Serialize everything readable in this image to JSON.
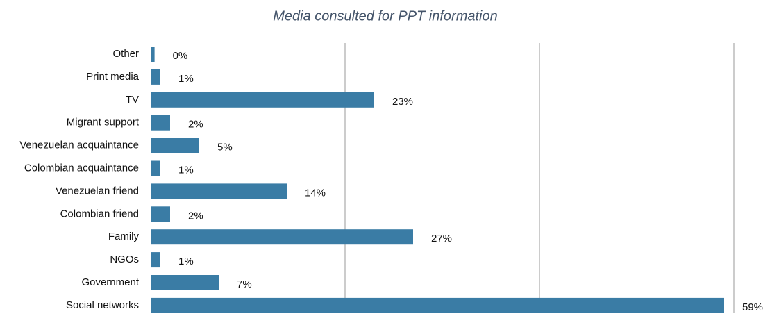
{
  "chart_data": {
    "type": "bar",
    "orientation": "horizontal",
    "title": "Media consulted for PPT information",
    "categories": [
      "Other",
      "Print media",
      "TV",
      "Migrant support",
      "Venezuelan acquaintance",
      "Colombian acquaintance",
      "Venezuelan friend",
      "Colombian friend",
      "Family",
      "NGOs",
      "Government",
      "Social networks"
    ],
    "values": [
      0.4,
      1,
      23,
      2,
      5,
      1,
      14,
      2,
      27,
      1,
      7,
      59
    ],
    "value_labels": [
      "0%",
      "1%",
      "23%",
      "2%",
      "5%",
      "1%",
      "14%",
      "2%",
      "27%",
      "1%",
      "7%",
      "59%"
    ],
    "color": "#3a7ca5",
    "xlim": [
      0,
      60
    ],
    "xticks": [
      0,
      20,
      40,
      60
    ],
    "grid": true
  }
}
